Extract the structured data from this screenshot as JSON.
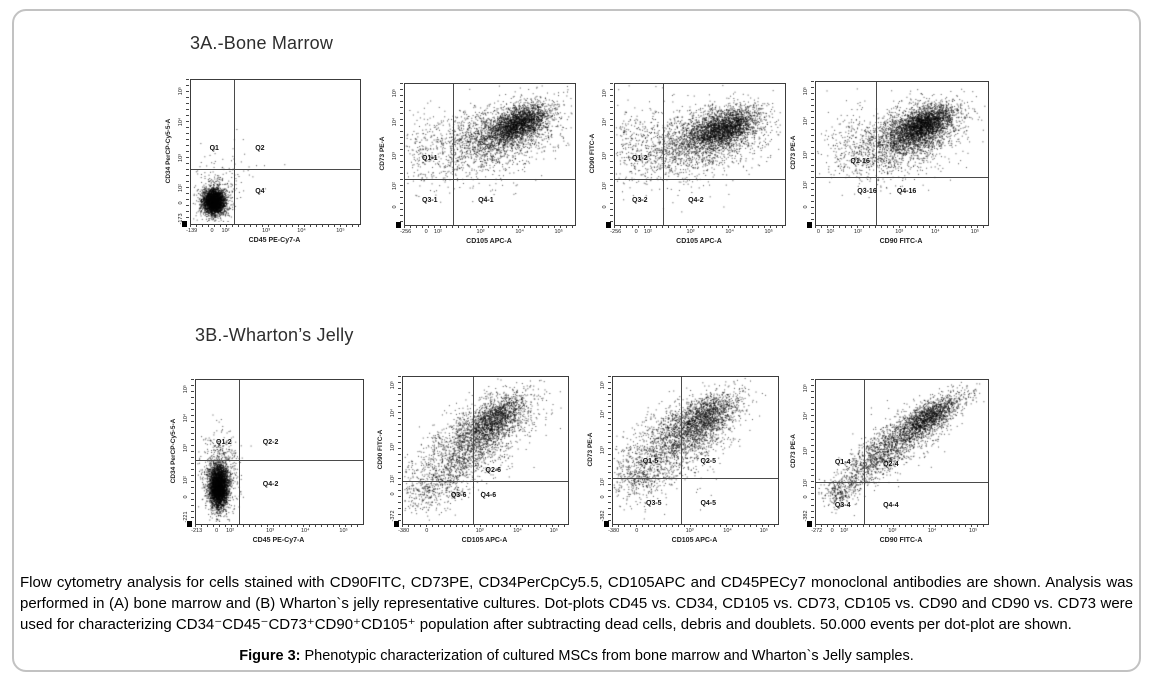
{
  "panel_a": {
    "heading": "3A.-Bone Marrow"
  },
  "panel_b": {
    "heading": "3B.-Wharton’s Jelly"
  },
  "caption": {
    "text": "Flow cytometry analysis for cells stained with CD90FITC, CD73PE, CD34PerCpCy5.5, CD105APC and CD45PECy7 monoclonal antibodies are shown. Analysis was performed in (A) bone marrow and (B) Wharton`s jelly representative cultures. Dot-plots CD45 vs. CD34, CD105 vs. CD73, CD105 vs. CD90 and CD90 vs. CD73 were used for characterizing CD34⁻CD45⁻CD73⁺CD90⁺CD105⁺ population after subtracting dead cells, debris and doublets. 50.000 events per dot-plot are shown."
  },
  "figure": {
    "label": "Figure 3:",
    "text": " Phenotypic characterization of cultured MSCs from bone marrow and Wharton`s Jelly samples."
  },
  "chart_data": [
    {
      "id": "a-cd45-vs-cd34",
      "panel": "A",
      "type": "scatter",
      "xlabel": "CD45 PE-Cy7-A",
      "ylabel": "CD34 PerCP-Cy5-5-A",
      "x_ticks": [
        {
          "label": "-139",
          "pos": 0.01
        },
        {
          "label": "0",
          "pos": 0.13
        },
        {
          "label": "10²",
          "pos": 0.21
        },
        {
          "label": "10³",
          "pos": 0.45
        },
        {
          "label": "10⁴",
          "pos": 0.66
        },
        {
          "label": "10⁵",
          "pos": 0.89
        }
      ],
      "y_ticks": [
        {
          "label": "10⁵",
          "pos": 0.08
        },
        {
          "label": "10⁴",
          "pos": 0.3
        },
        {
          "label": "10³",
          "pos": 0.55
        },
        {
          "label": "10²",
          "pos": 0.76
        },
        {
          "label": "0",
          "pos": 0.86
        },
        {
          "label": "-173",
          "pos": 0.97
        }
      ],
      "vline": 0.257,
      "hline": 0.616,
      "quadrants": [
        {
          "label": "Q1",
          "x": 0.11,
          "y": 0.45
        },
        {
          "label": "Q2",
          "x": 0.38,
          "y": 0.45
        },
        {
          "label": "Q4",
          "x": 0.38,
          "y": 0.75
        }
      ],
      "clusters": [
        {
          "cx": 0.135,
          "cy": 0.855,
          "sx": 0.032,
          "sy": 0.042,
          "rho": 0,
          "n": 3000
        },
        {
          "cx": 0.145,
          "cy": 0.82,
          "sx": 0.06,
          "sy": 0.085,
          "rho": 0,
          "n": 420
        },
        {
          "cx": 0.2,
          "cy": 0.62,
          "sx": 0.13,
          "sy": 0.13,
          "rho": 0,
          "n": 55
        }
      ]
    },
    {
      "id": "a-cd105-vs-cd73",
      "panel": "A",
      "type": "scatter",
      "xlabel": "CD105 APC-A",
      "ylabel": "CD73 PE-A",
      "x_ticks": [
        {
          "label": "-256",
          "pos": 0.01
        },
        {
          "label": "0",
          "pos": 0.13
        },
        {
          "label": "10²",
          "pos": 0.2
        },
        {
          "label": "10³",
          "pos": 0.45
        },
        {
          "label": "10⁴",
          "pos": 0.68
        },
        {
          "label": "10⁵",
          "pos": 0.91
        }
      ],
      "y_ticks": [
        {
          "label": "10⁵",
          "pos": 0.07
        },
        {
          "label": "10⁴",
          "pos": 0.28
        },
        {
          "label": "10³",
          "pos": 0.52
        },
        {
          "label": "10²",
          "pos": 0.73
        },
        {
          "label": "0",
          "pos": 0.88
        }
      ],
      "vline": 0.284,
      "hline": 0.671,
      "quadrants": [
        {
          "label": "Q1-1",
          "x": 0.1,
          "y": 0.5
        },
        {
          "label": "Q3-1",
          "x": 0.1,
          "y": 0.8
        },
        {
          "label": "Q4-1",
          "x": 0.43,
          "y": 0.8
        }
      ],
      "clusters": [
        {
          "cx": 0.68,
          "cy": 0.28,
          "sx": 0.09,
          "sy": 0.07,
          "rho": 0.55,
          "n": 1900
        },
        {
          "cx": 0.58,
          "cy": 0.35,
          "sx": 0.16,
          "sy": 0.11,
          "rho": 0.45,
          "n": 1500
        },
        {
          "cx": 0.42,
          "cy": 0.45,
          "sx": 0.22,
          "sy": 0.14,
          "rho": 0.25,
          "n": 700
        },
        {
          "cx": 0.12,
          "cy": 0.45,
          "sx": 0.09,
          "sy": 0.17,
          "rho": 0,
          "n": 170
        }
      ]
    },
    {
      "id": "a-cd105-vs-cd90",
      "panel": "A",
      "type": "scatter",
      "xlabel": "CD105 APC-A",
      "ylabel": "CD90 FITC-A",
      "x_ticks": [
        {
          "label": "-256",
          "pos": 0.01
        },
        {
          "label": "0",
          "pos": 0.13
        },
        {
          "label": "10²",
          "pos": 0.2
        },
        {
          "label": "10³",
          "pos": 0.45
        },
        {
          "label": "10⁴",
          "pos": 0.68
        },
        {
          "label": "10⁵",
          "pos": 0.91
        }
      ],
      "y_ticks": [
        {
          "label": "10⁵",
          "pos": 0.07
        },
        {
          "label": "10⁴",
          "pos": 0.28
        },
        {
          "label": "10³",
          "pos": 0.52
        },
        {
          "label": "10²",
          "pos": 0.73
        },
        {
          "label": "0",
          "pos": 0.88
        }
      ],
      "vline": 0.284,
      "hline": 0.671,
      "quadrants": [
        {
          "label": "Q1-2",
          "x": 0.1,
          "y": 0.5
        },
        {
          "label": "Q3-2",
          "x": 0.1,
          "y": 0.8
        },
        {
          "label": "Q4-2",
          "x": 0.43,
          "y": 0.8
        }
      ],
      "clusters": [
        {
          "cx": 0.65,
          "cy": 0.31,
          "sx": 0.1,
          "sy": 0.07,
          "rho": 0.45,
          "n": 1900
        },
        {
          "cx": 0.55,
          "cy": 0.38,
          "sx": 0.17,
          "sy": 0.11,
          "rho": 0.35,
          "n": 1500
        },
        {
          "cx": 0.4,
          "cy": 0.47,
          "sx": 0.22,
          "sy": 0.13,
          "rho": 0.2,
          "n": 700
        },
        {
          "cx": 0.12,
          "cy": 0.42,
          "sx": 0.09,
          "sy": 0.15,
          "rho": 0,
          "n": 200
        }
      ]
    },
    {
      "id": "a-cd90-vs-cd73",
      "panel": "A",
      "type": "scatter",
      "xlabel": "CD90 FITC-A",
      "ylabel": "CD73 PE-A",
      "x_ticks": [
        {
          "label": "0",
          "pos": 0.02
        },
        {
          "label": "10¹",
          "pos": 0.09
        },
        {
          "label": "10²",
          "pos": 0.25
        },
        {
          "label": "10³",
          "pos": 0.49
        },
        {
          "label": "10⁴",
          "pos": 0.7
        },
        {
          "label": "10⁵",
          "pos": 0.93
        }
      ],
      "y_ticks": [
        {
          "label": "10⁵",
          "pos": 0.07
        },
        {
          "label": "10⁴",
          "pos": 0.28
        },
        {
          "label": "10³",
          "pos": 0.52
        },
        {
          "label": "10²",
          "pos": 0.73
        },
        {
          "label": "0",
          "pos": 0.88
        }
      ],
      "vline": 0.35,
      "hline": 0.663,
      "quadrants": [
        {
          "label": "Q1-16",
          "x": 0.2,
          "y": 0.53
        },
        {
          "label": "Q3-16",
          "x": 0.24,
          "y": 0.74
        },
        {
          "label": "Q4-16",
          "x": 0.47,
          "y": 0.74
        }
      ],
      "clusters": [
        {
          "cx": 0.63,
          "cy": 0.3,
          "sx": 0.09,
          "sy": 0.07,
          "rho": 0.5,
          "n": 2300
        },
        {
          "cx": 0.55,
          "cy": 0.37,
          "sx": 0.15,
          "sy": 0.11,
          "rho": 0.4,
          "n": 1500
        },
        {
          "cx": 0.45,
          "cy": 0.45,
          "sx": 0.19,
          "sy": 0.13,
          "rho": 0.25,
          "n": 600
        },
        {
          "cx": 0.2,
          "cy": 0.45,
          "sx": 0.09,
          "sy": 0.13,
          "rho": 0,
          "n": 150
        }
      ]
    },
    {
      "id": "b-cd45-vs-cd34",
      "panel": "B",
      "type": "scatter",
      "xlabel": "CD45 PE-Cy7-A",
      "ylabel": "CD34 PerCP-Cy5-5-A",
      "x_ticks": [
        {
          "label": "-213",
          "pos": 0.01
        },
        {
          "label": "0",
          "pos": 0.13
        },
        {
          "label": "10²",
          "pos": 0.21
        },
        {
          "label": "10³",
          "pos": 0.45
        },
        {
          "label": "10⁴",
          "pos": 0.66
        },
        {
          "label": "10⁵",
          "pos": 0.89
        }
      ],
      "y_ticks": [
        {
          "label": "10⁵",
          "pos": 0.07
        },
        {
          "label": "10⁴",
          "pos": 0.27
        },
        {
          "label": "10³",
          "pos": 0.48
        },
        {
          "label": "10²",
          "pos": 0.7
        },
        {
          "label": "0",
          "pos": 0.82
        },
        {
          "label": "-221",
          "pos": 0.96
        }
      ],
      "vline": 0.256,
      "hline": 0.553,
      "quadrants": [
        {
          "label": "Q1-2",
          "x": 0.12,
          "y": 0.41
        },
        {
          "label": "Q2-2",
          "x": 0.4,
          "y": 0.41
        },
        {
          "label": "Q4-2",
          "x": 0.4,
          "y": 0.7
        }
      ],
      "clusters": [
        {
          "cx": 0.135,
          "cy": 0.75,
          "sx": 0.028,
          "sy": 0.075,
          "rho": 0,
          "n": 3600
        },
        {
          "cx": 0.14,
          "cy": 0.7,
          "sx": 0.055,
          "sy": 0.13,
          "rho": 0,
          "n": 600
        },
        {
          "cx": 0.15,
          "cy": 0.47,
          "sx": 0.05,
          "sy": 0.06,
          "rho": 0,
          "n": 80
        }
      ]
    },
    {
      "id": "b-cd105-vs-cd90",
      "panel": "B",
      "type": "scatter",
      "xlabel": "CD105 APC-A",
      "ylabel": "CD90 FITC-A",
      "x_ticks": [
        {
          "label": "-380",
          "pos": 0.01
        },
        {
          "label": "0",
          "pos": 0.15
        },
        {
          "label": "10³",
          "pos": 0.47
        },
        {
          "label": "10⁴",
          "pos": 0.7
        },
        {
          "label": "10⁵",
          "pos": 0.92
        }
      ],
      "y_ticks": [
        {
          "label": "10⁵",
          "pos": 0.06
        },
        {
          "label": "10⁴",
          "pos": 0.25
        },
        {
          "label": "10³",
          "pos": 0.48
        },
        {
          "label": "10²",
          "pos": 0.7
        },
        {
          "label": "0",
          "pos": 0.8
        },
        {
          "label": "-372",
          "pos": 0.95
        }
      ],
      "vline": 0.425,
      "hline": 0.71,
      "quadrants": [
        {
          "label": "Q2-6",
          "x": 0.5,
          "y": 0.61
        },
        {
          "label": "Q3-6",
          "x": 0.29,
          "y": 0.78
        },
        {
          "label": "Q4-6",
          "x": 0.47,
          "y": 0.78
        }
      ],
      "clusters": [
        {
          "cx": 0.57,
          "cy": 0.28,
          "sx": 0.09,
          "sy": 0.08,
          "rho": 0.6,
          "n": 1100
        },
        {
          "cx": 0.47,
          "cy": 0.4,
          "sx": 0.16,
          "sy": 0.14,
          "rho": 0.6,
          "n": 1300
        },
        {
          "cx": 0.35,
          "cy": 0.55,
          "sx": 0.18,
          "sy": 0.16,
          "rho": 0.55,
          "n": 800
        },
        {
          "cx": 0.18,
          "cy": 0.75,
          "sx": 0.1,
          "sy": 0.09,
          "rho": 0.4,
          "n": 350
        }
      ]
    },
    {
      "id": "b-cd105-vs-cd73",
      "panel": "B",
      "type": "scatter",
      "xlabel": "CD105 APC-A",
      "ylabel": "CD73 PE-A",
      "x_ticks": [
        {
          "label": "-380",
          "pos": 0.01
        },
        {
          "label": "0",
          "pos": 0.15
        },
        {
          "label": "10³",
          "pos": 0.47
        },
        {
          "label": "10⁴",
          "pos": 0.7
        },
        {
          "label": "10⁵",
          "pos": 0.92
        }
      ],
      "y_ticks": [
        {
          "label": "10⁵",
          "pos": 0.06
        },
        {
          "label": "10⁴",
          "pos": 0.26
        },
        {
          "label": "10³",
          "pos": 0.5
        },
        {
          "label": "10²",
          "pos": 0.72
        },
        {
          "label": "0",
          "pos": 0.82
        },
        {
          "label": "-382",
          "pos": 0.95
        }
      ],
      "vline": 0.41,
      "hline": 0.685,
      "quadrants": [
        {
          "label": "Q1-5",
          "x": 0.18,
          "y": 0.55
        },
        {
          "label": "Q2-5",
          "x": 0.53,
          "y": 0.55
        },
        {
          "label": "Q3-5",
          "x": 0.2,
          "y": 0.84
        },
        {
          "label": "Q4-5",
          "x": 0.53,
          "y": 0.84
        }
      ],
      "clusters": [
        {
          "cx": 0.57,
          "cy": 0.26,
          "sx": 0.1,
          "sy": 0.08,
          "rho": 0.55,
          "n": 1100
        },
        {
          "cx": 0.45,
          "cy": 0.38,
          "sx": 0.16,
          "sy": 0.13,
          "rho": 0.55,
          "n": 1300
        },
        {
          "cx": 0.32,
          "cy": 0.52,
          "sx": 0.17,
          "sy": 0.15,
          "rho": 0.5,
          "n": 700
        },
        {
          "cx": 0.16,
          "cy": 0.7,
          "sx": 0.09,
          "sy": 0.09,
          "rho": 0,
          "n": 300
        }
      ]
    },
    {
      "id": "b-cd90-vs-cd73",
      "panel": "B",
      "type": "scatter",
      "xlabel": "CD90 FITC-A",
      "ylabel": "CD73 PE-A",
      "x_ticks": [
        {
          "label": "-272",
          "pos": 0.01
        },
        {
          "label": "0",
          "pos": 0.1
        },
        {
          "label": "10²",
          "pos": 0.17
        },
        {
          "label": "10³",
          "pos": 0.45
        },
        {
          "label": "10⁴",
          "pos": 0.68
        },
        {
          "label": "10⁵",
          "pos": 0.92
        }
      ],
      "y_ticks": [
        {
          "label": "10⁵",
          "pos": 0.06
        },
        {
          "label": "10⁴",
          "pos": 0.26
        },
        {
          "label": "10³",
          "pos": 0.5
        },
        {
          "label": "10²",
          "pos": 0.72
        },
        {
          "label": "0",
          "pos": 0.82
        },
        {
          "label": "-382",
          "pos": 0.95
        }
      ],
      "vline": 0.28,
      "hline": 0.71,
      "quadrants": [
        {
          "label": "Q1-4",
          "x": 0.11,
          "y": 0.55
        },
        {
          "label": "Q2-4",
          "x": 0.39,
          "y": 0.56
        },
        {
          "label": "Q3-4",
          "x": 0.11,
          "y": 0.85
        },
        {
          "label": "Q4-4",
          "x": 0.39,
          "y": 0.85
        }
      ],
      "clusters": [
        {
          "cx": 0.66,
          "cy": 0.26,
          "sx": 0.1,
          "sy": 0.08,
          "rho": 0.75,
          "n": 1400
        },
        {
          "cx": 0.52,
          "cy": 0.4,
          "sx": 0.14,
          "sy": 0.12,
          "rho": 0.7,
          "n": 1000
        },
        {
          "cx": 0.36,
          "cy": 0.55,
          "sx": 0.1,
          "sy": 0.1,
          "rho": 0.6,
          "n": 500
        },
        {
          "cx": 0.24,
          "cy": 0.66,
          "sx": 0.06,
          "sy": 0.07,
          "rho": 0.5,
          "n": 160
        },
        {
          "cx": 0.13,
          "cy": 0.79,
          "sx": 0.045,
          "sy": 0.055,
          "rho": 0,
          "n": 260
        }
      ]
    }
  ]
}
